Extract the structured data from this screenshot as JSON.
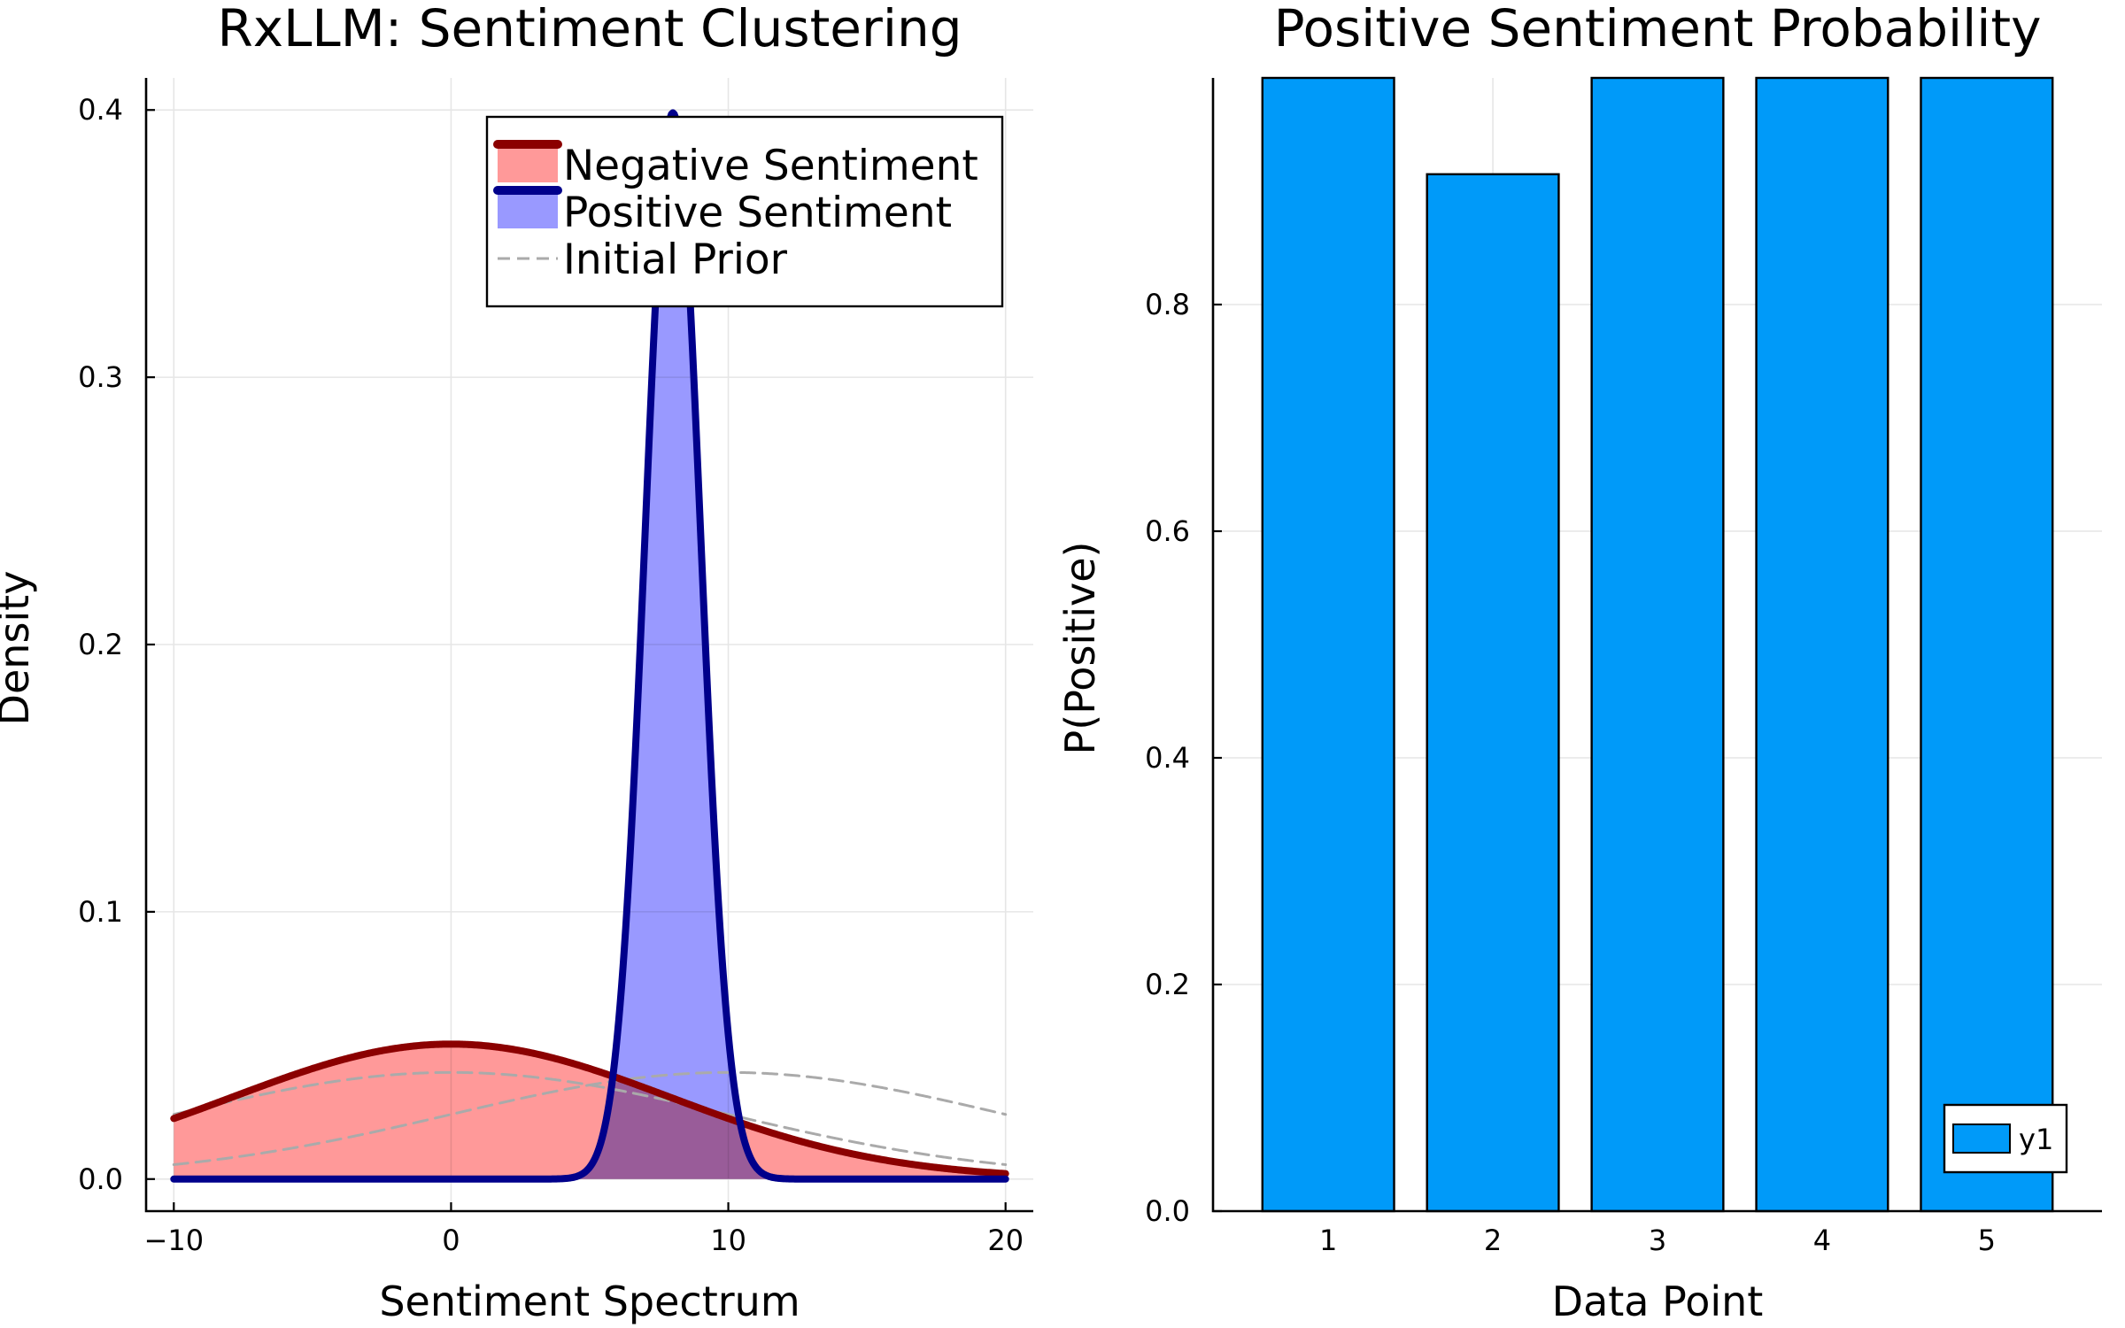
{
  "chart_data": [
    {
      "type": "area",
      "title": "RxLLM: Sentiment Clustering",
      "xlabel": "Sentiment Spectrum",
      "ylabel": "Density",
      "xlim": [
        -11,
        21
      ],
      "ylim": [
        -0.012,
        0.412
      ],
      "xticks": [
        -10,
        0,
        10,
        20
      ],
      "yticks": [
        0.0,
        0.1,
        0.2,
        0.3,
        0.4
      ],
      "grid": true,
      "legend_position": "top-right",
      "series": [
        {
          "name": "Negative Sentiment",
          "kind": "normal-density",
          "mean": 0,
          "sd": 7.9,
          "x_range": [
            -10,
            20
          ],
          "line_color": "#8b0000",
          "fill_color": "#ff9999",
          "line_style": "solid",
          "filled": true
        },
        {
          "name": "Positive Sentiment",
          "kind": "normal-density",
          "mean": 8,
          "sd": 1.0,
          "x_range": [
            -10,
            20
          ],
          "line_color": "#00008b",
          "fill_color": "#9999ff",
          "line_style": "solid",
          "filled": true
        },
        {
          "name": "Initial Prior",
          "kind": "normal-density",
          "mean": 0,
          "sd": 10,
          "x_range": [
            -10,
            20
          ],
          "line_color": "#aaaaaa",
          "line_style": "dashed",
          "filled": false
        },
        {
          "name": "",
          "kind": "normal-density",
          "mean": 10,
          "sd": 10,
          "x_range": [
            -10,
            20
          ],
          "line_color": "#aaaaaa",
          "line_style": "dashed",
          "filled": false
        }
      ]
    },
    {
      "type": "bar",
      "title": "Positive Sentiment Probability",
      "xlabel": "Data Point",
      "ylabel": "P(Positive)",
      "categories": [
        "1",
        "2",
        "3",
        "4",
        "5"
      ],
      "ylim": [
        0,
        1.0
      ],
      "yticks": [
        0.0,
        0.2,
        0.4,
        0.6,
        0.8
      ],
      "grid": true,
      "legend_position": "bottom-right",
      "series": [
        {
          "name": "y1",
          "values": [
            1.0,
            0.915,
            1.0,
            1.0,
            1.0
          ],
          "color": "#009af9"
        }
      ]
    }
  ]
}
